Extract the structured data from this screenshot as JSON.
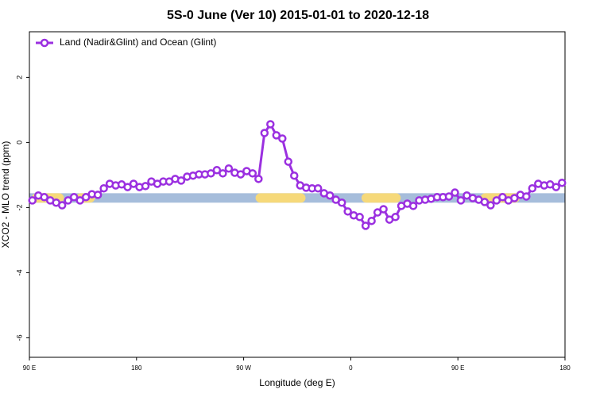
{
  "chart_data": {
    "type": "line",
    "title": "5S-0 June (Ver 10)   2015-01-01 to 2020-12-18",
    "x_label": "Longitude (deg E)",
    "y_label": "XCO2 - MLO trend (ppm)",
    "xlim": [
      90,
      540
    ],
    "ylim": [
      -6.6,
      3.4
    ],
    "xticks": [
      {
        "value": 90,
        "label": "90 E"
      },
      180,
      {
        "value": 270,
        "label": "90 W"
      },
      {
        "value": 360,
        "label": "0"
      },
      {
        "value": 450,
        "label": "90 E"
      },
      {
        "value": 540,
        "label": "180"
      }
    ],
    "yticks": [
      2,
      0,
      -2,
      -4,
      -6
    ],
    "legend": "top-left",
    "band": {
      "y": [
        -1.85,
        -1.56
      ],
      "color": "#a6bddb",
      "segment_color": "#f6d97a",
      "segments": [
        [
          92,
          119
        ],
        [
          129,
          145
        ],
        [
          280,
          322
        ],
        [
          369,
          402
        ],
        [
          469,
          502
        ]
      ]
    },
    "x": [
      92.5,
      97.5,
      102.5,
      107.5,
      112.5,
      117.5,
      122.5,
      127.5,
      132.5,
      137.5,
      142.5,
      147.5,
      152.5,
      157.5,
      162.5,
      167.5,
      172.5,
      177.5,
      182.5,
      187.5,
      192.5,
      197.5,
      202.5,
      207.5,
      212.5,
      217.5,
      222.5,
      227.5,
      232.5,
      237.5,
      242.5,
      247.5,
      252.5,
      257.5,
      262.5,
      267.5,
      272.5,
      277.5,
      282.5,
      287.5,
      292.5,
      297.5,
      302.5,
      307.5,
      312.5,
      317.5,
      322.5,
      327.5,
      332.5,
      337.5,
      342.5,
      347.5,
      352.5,
      357.5,
      362.5,
      367.5,
      372.5,
      377.5,
      382.5,
      387.5,
      392.5,
      397.5,
      402.5,
      407.5,
      412.5,
      417.5,
      422.5,
      427.5,
      432.5,
      437.5,
      442.5,
      447.5,
      452.5,
      457.5,
      462.5,
      467.5,
      472.5,
      477.5,
      482.5,
      487.5,
      492.5,
      497.5,
      502.5,
      507.5,
      512.5,
      517.5,
      522.5,
      527.5,
      532.5,
      537.5
    ],
    "series": [
      {
        "name": "Land (Nadir&Glint) and Ocean (Glint)",
        "color": "#9b30e0",
        "values": [
          -1.78,
          -1.63,
          -1.68,
          -1.78,
          -1.85,
          -1.93,
          -1.78,
          -1.68,
          -1.78,
          -1.68,
          -1.59,
          -1.61,
          -1.41,
          -1.27,
          -1.32,
          -1.29,
          -1.37,
          -1.27,
          -1.37,
          -1.34,
          -1.2,
          -1.27,
          -1.2,
          -1.2,
          -1.12,
          -1.17,
          -1.05,
          -1.02,
          -0.98,
          -0.98,
          -0.95,
          -0.85,
          -0.95,
          -0.8,
          -0.93,
          -0.98,
          -0.88,
          -0.95,
          -1.12,
          0.29,
          0.56,
          0.22,
          0.12,
          -0.59,
          -1.02,
          -1.32,
          -1.39,
          -1.41,
          -1.41,
          -1.56,
          -1.63,
          -1.76,
          -1.85,
          -2.12,
          -2.24,
          -2.29,
          -2.56,
          -2.41,
          -2.15,
          -2.05,
          -2.37,
          -2.29,
          -1.95,
          -1.88,
          -1.95,
          -1.78,
          -1.76,
          -1.73,
          -1.68,
          -1.68,
          -1.66,
          -1.54,
          -1.78,
          -1.63,
          -1.71,
          -1.76,
          -1.83,
          -1.93,
          -1.78,
          -1.68,
          -1.78,
          -1.71,
          -1.61,
          -1.66,
          -1.41,
          -1.27,
          -1.32,
          -1.29,
          -1.37,
          -1.24
        ]
      }
    ]
  }
}
